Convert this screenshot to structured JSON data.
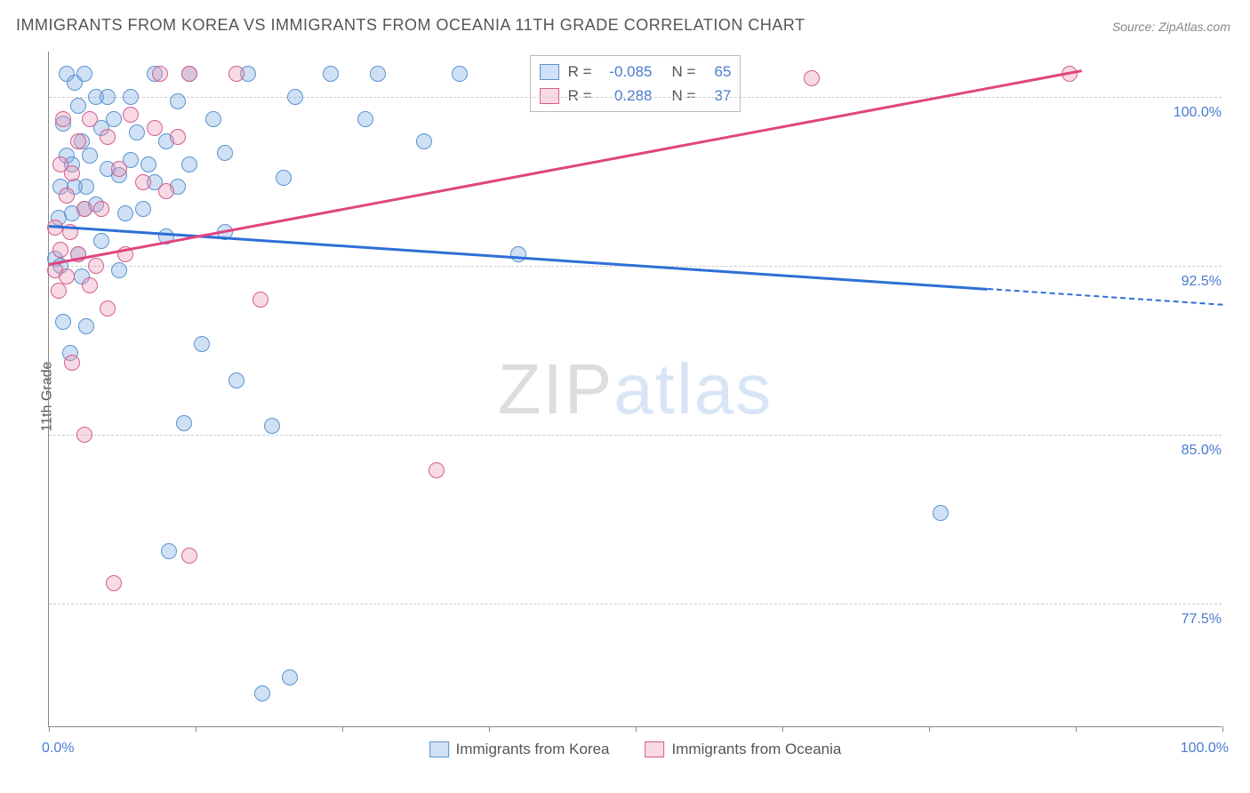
{
  "title": "IMMIGRANTS FROM KOREA VS IMMIGRANTS FROM OCEANIA 11TH GRADE CORRELATION CHART",
  "source": "Source: ZipAtlas.com",
  "yaxis_title": "11th Grade",
  "watermark": {
    "part1": "ZIP",
    "part2": "atlas"
  },
  "chart": {
    "type": "scatter-correlation",
    "background_color": "#ffffff",
    "grid_color": "#cccccc",
    "axis_color": "#888888",
    "label_color": "#4a7bd0",
    "text_color": "#555555",
    "label_fontsize": 16,
    "title_fontsize": 18,
    "marker_radius": 9,
    "marker_stroke_width": 1.5,
    "xlim": [
      0,
      100
    ],
    "ylim": [
      72,
      102
    ],
    "xtick_positions": [
      0,
      12.5,
      25,
      37.5,
      50,
      62.5,
      75,
      87.5,
      100
    ],
    "xaxis_end_labels": [
      "0.0%",
      "100.0%"
    ],
    "ytick_positions": [
      77.5,
      85.0,
      92.5,
      100.0
    ],
    "ytick_labels": [
      "77.5%",
      "85.0%",
      "92.5%",
      "100.0%"
    ],
    "series": [
      {
        "name": "Immigrants from Korea",
        "color_fill": "rgba(120,170,225,0.35)",
        "color_stroke": "#5a93cf",
        "line_color": "#2e6fd6",
        "r": -0.085,
        "n": 65,
        "trend": {
          "x0": 0,
          "y0": 94.3,
          "x_solid_end": 80,
          "x1": 100,
          "y1": 90.8
        },
        "points": [
          [
            0.5,
            92.8
          ],
          [
            0.8,
            94.6
          ],
          [
            1.0,
            96.0
          ],
          [
            1.0,
            92.5
          ],
          [
            1.2,
            90.0
          ],
          [
            1.2,
            98.8
          ],
          [
            1.5,
            97.4
          ],
          [
            1.5,
            101.0
          ],
          [
            1.8,
            88.6
          ],
          [
            2.0,
            97.0
          ],
          [
            2.0,
            94.8
          ],
          [
            2.2,
            96.0
          ],
          [
            2.2,
            100.6
          ],
          [
            2.5,
            93.0
          ],
          [
            2.5,
            99.6
          ],
          [
            2.8,
            92.0
          ],
          [
            2.8,
            98.0
          ],
          [
            3.0,
            95.0
          ],
          [
            3.0,
            101.0
          ],
          [
            3.2,
            96.0
          ],
          [
            3.2,
            89.8
          ],
          [
            3.5,
            97.4
          ],
          [
            4.0,
            100.0
          ],
          [
            4.0,
            95.2
          ],
          [
            4.5,
            98.6
          ],
          [
            4.5,
            93.6
          ],
          [
            5.0,
            100.0
          ],
          [
            5.0,
            96.8
          ],
          [
            5.5,
            99.0
          ],
          [
            6.0,
            96.5
          ],
          [
            6.0,
            92.3
          ],
          [
            6.5,
            94.8
          ],
          [
            7.0,
            100.0
          ],
          [
            7.0,
            97.2
          ],
          [
            7.5,
            98.4
          ],
          [
            8.0,
            95.0
          ],
          [
            8.5,
            97.0
          ],
          [
            9.0,
            96.2
          ],
          [
            9.0,
            101.0
          ],
          [
            10.0,
            98.0
          ],
          [
            10.0,
            93.8
          ],
          [
            10.2,
            79.8
          ],
          [
            11.0,
            99.8
          ],
          [
            11.0,
            96.0
          ],
          [
            11.5,
            85.5
          ],
          [
            12.0,
            97.0
          ],
          [
            12.0,
            101.0
          ],
          [
            13.0,
            89.0
          ],
          [
            14.0,
            99.0
          ],
          [
            15.0,
            97.5
          ],
          [
            15.0,
            94.0
          ],
          [
            16.0,
            87.4
          ],
          [
            17.0,
            101.0
          ],
          [
            18.2,
            73.5
          ],
          [
            19.0,
            85.4
          ],
          [
            20.0,
            96.4
          ],
          [
            20.5,
            74.2
          ],
          [
            21.0,
            100.0
          ],
          [
            24.0,
            101.0
          ],
          [
            27.0,
            99.0
          ],
          [
            28.0,
            101.0
          ],
          [
            32.0,
            98.0
          ],
          [
            35.0,
            101.0
          ],
          [
            40.0,
            93.0
          ],
          [
            76.0,
            81.5
          ]
        ]
      },
      {
        "name": "Immigrants from Oceania",
        "color_fill": "rgba(235,150,180,0.35)",
        "color_stroke": "#d45e8d",
        "line_color": "#e0457e",
        "r": 0.288,
        "n": 37,
        "trend": {
          "x0": 0,
          "y0": 92.6,
          "x_solid_end": 88,
          "x1": 88,
          "y1": 101.2
        },
        "points": [
          [
            0.5,
            92.3
          ],
          [
            0.5,
            94.2
          ],
          [
            0.8,
            91.4
          ],
          [
            1.0,
            93.2
          ],
          [
            1.0,
            97.0
          ],
          [
            1.2,
            99.0
          ],
          [
            1.5,
            92.0
          ],
          [
            1.5,
            95.6
          ],
          [
            1.8,
            94.0
          ],
          [
            2.0,
            96.6
          ],
          [
            2.0,
            88.2
          ],
          [
            2.5,
            93.0
          ],
          [
            2.5,
            98.0
          ],
          [
            3.0,
            85.0
          ],
          [
            3.0,
            95.0
          ],
          [
            3.5,
            91.6
          ],
          [
            3.5,
            99.0
          ],
          [
            4.0,
            92.5
          ],
          [
            4.5,
            95.0
          ],
          [
            5.0,
            90.6
          ],
          [
            5.0,
            98.2
          ],
          [
            5.5,
            78.4
          ],
          [
            6.0,
            96.8
          ],
          [
            6.5,
            93.0
          ],
          [
            7.0,
            99.2
          ],
          [
            8.0,
            96.2
          ],
          [
            9.0,
            98.6
          ],
          [
            9.5,
            101.0
          ],
          [
            10.0,
            95.8
          ],
          [
            11.0,
            98.2
          ],
          [
            12.0,
            101.0
          ],
          [
            12.0,
            79.6
          ],
          [
            16.0,
            101.0
          ],
          [
            18.0,
            91.0
          ],
          [
            33.0,
            83.4
          ],
          [
            65.0,
            100.8
          ],
          [
            87.0,
            101.0
          ]
        ]
      }
    ],
    "stats_labels": {
      "r": "R =",
      "n": "N ="
    }
  }
}
